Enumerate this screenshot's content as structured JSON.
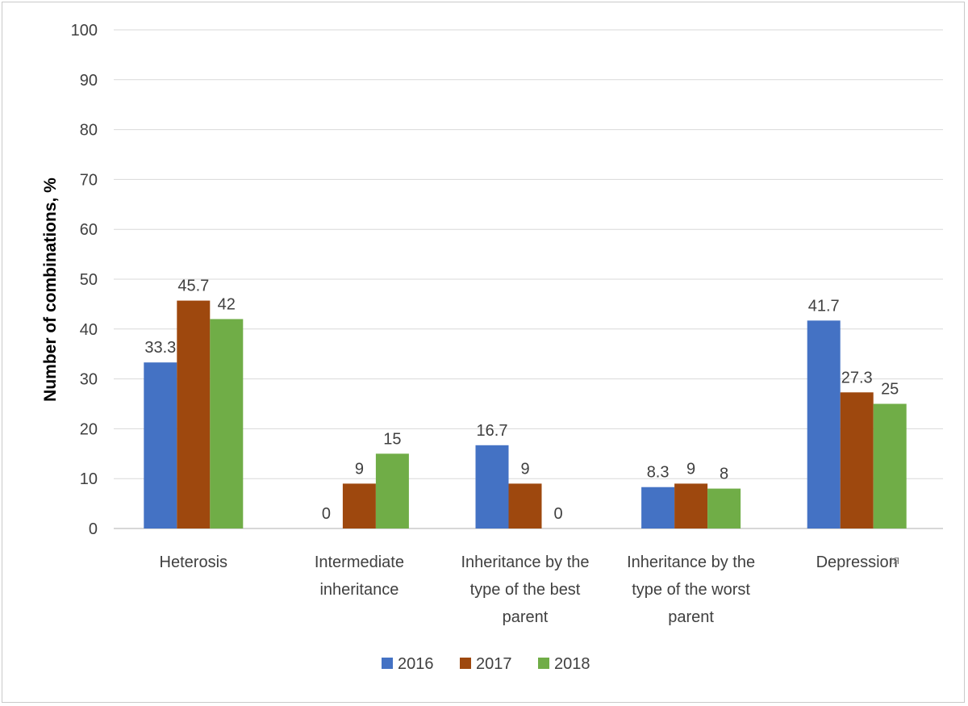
{
  "chart_data": {
    "type": "bar",
    "ylabel": "Number of combinations, %",
    "ylim": [
      0,
      100
    ],
    "yticks": [
      0,
      10,
      20,
      30,
      40,
      50,
      60,
      70,
      80,
      90,
      100
    ],
    "grid": true,
    "legend_position": "bottom",
    "categories": [
      [
        "Heterosis"
      ],
      [
        "Intermediate",
        "inheritance"
      ],
      [
        "Inheritance by the",
        "type of the best",
        "parent"
      ],
      [
        "Inheritance by the",
        "type of the worst",
        "parent"
      ],
      [
        "Depression"
      ]
    ],
    "stray_annotation": "ıя",
    "series": [
      {
        "name": "2016",
        "color": "#4472c4",
        "values": [
          33.3,
          0,
          16.7,
          8.3,
          41.7
        ]
      },
      {
        "name": "2017",
        "color": "#9e480e",
        "values": [
          45.7,
          9,
          9,
          9,
          27.3
        ]
      },
      {
        "name": "2018",
        "color": "#70ad47",
        "values": [
          42,
          15,
          0,
          8,
          25
        ]
      }
    ]
  }
}
